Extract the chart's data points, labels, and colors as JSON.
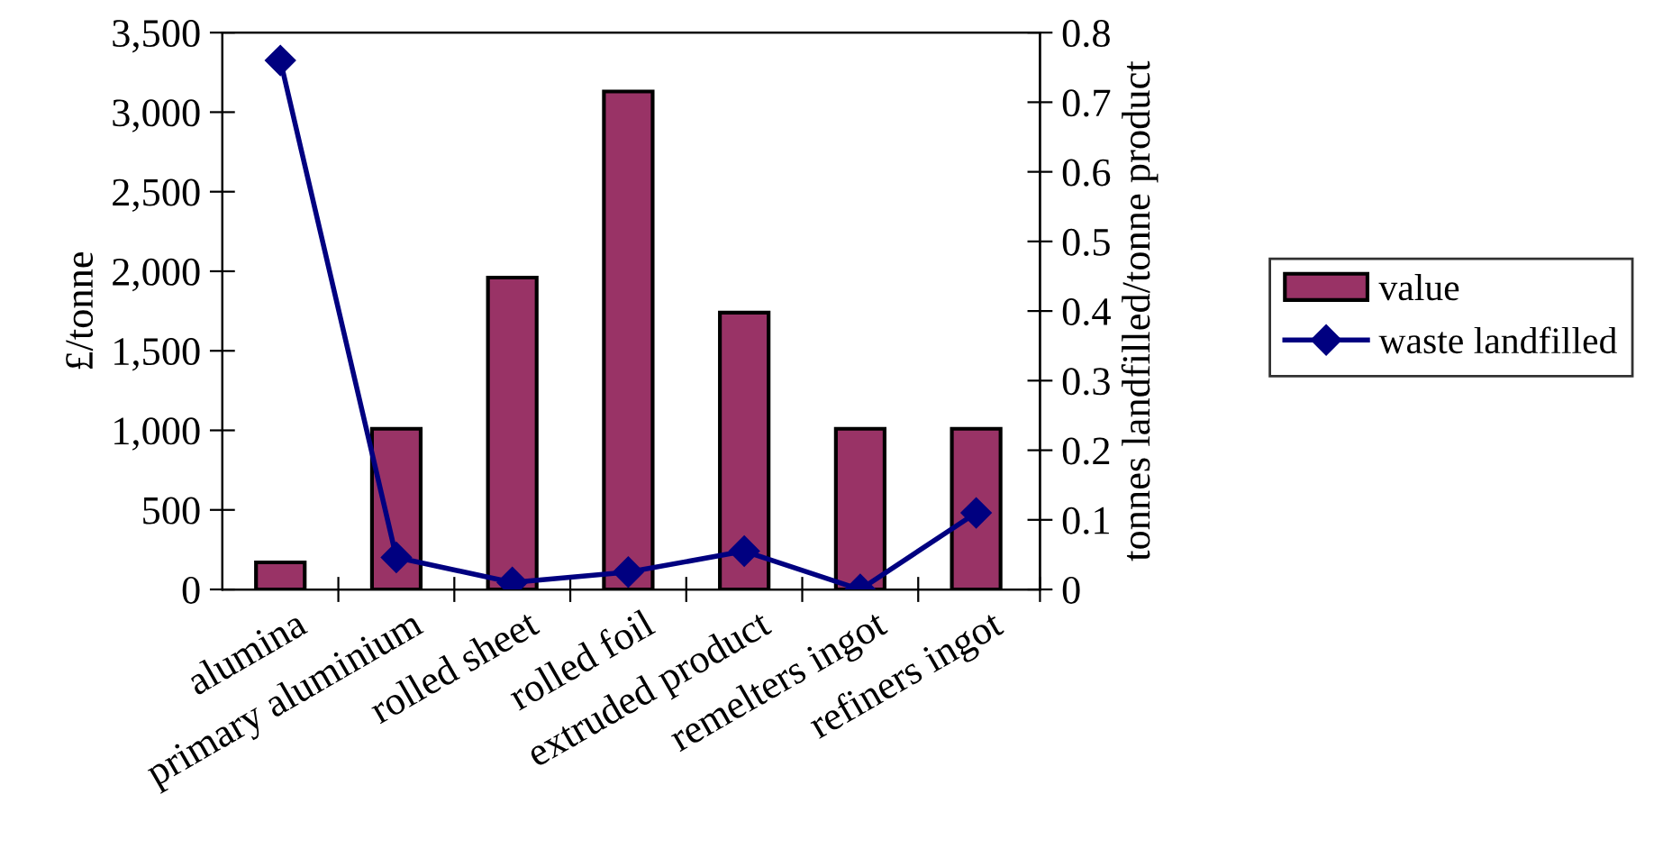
{
  "chart_data": {
    "type": "bar",
    "categories": [
      "alumina",
      "primary aluminium",
      "rolled sheet",
      "rolled foil",
      "extruded product",
      "remelters ingot",
      "refiners ingot"
    ],
    "series": [
      {
        "name": "value",
        "color": "#993366",
        "values": [
          170,
          1010,
          1960,
          3130,
          1740,
          1010,
          1010
        ]
      },
      {
        "name": "waste landfilled",
        "type": "line",
        "axis": "y2",
        "color": "#000080",
        "marker": "diamond",
        "values": [
          0.76,
          0.046,
          0.01,
          0.025,
          0.055,
          0.0,
          0.11
        ]
      }
    ],
    "ylabel": "£/tonne",
    "y2label": "tonnes landfilled/tonne product",
    "ylim": [
      0,
      3500
    ],
    "yticks": [
      {
        "value": 0,
        "label": "0"
      },
      {
        "value": 500,
        "label": "500"
      },
      {
        "value": 1000,
        "label": "1,000"
      },
      {
        "value": 1500,
        "label": "1,500"
      },
      {
        "value": 2000,
        "label": "2,000"
      },
      {
        "value": 2500,
        "label": "2,500"
      },
      {
        "value": 3000,
        "label": "3,000"
      },
      {
        "value": 3500,
        "label": "3,500"
      }
    ],
    "y2lim": [
      0,
      0.8
    ],
    "y2ticks": [
      0,
      0.1,
      0.2,
      0.3,
      0.4,
      0.5,
      0.6,
      0.7,
      0.8
    ],
    "grid": false,
    "legend": "right"
  }
}
